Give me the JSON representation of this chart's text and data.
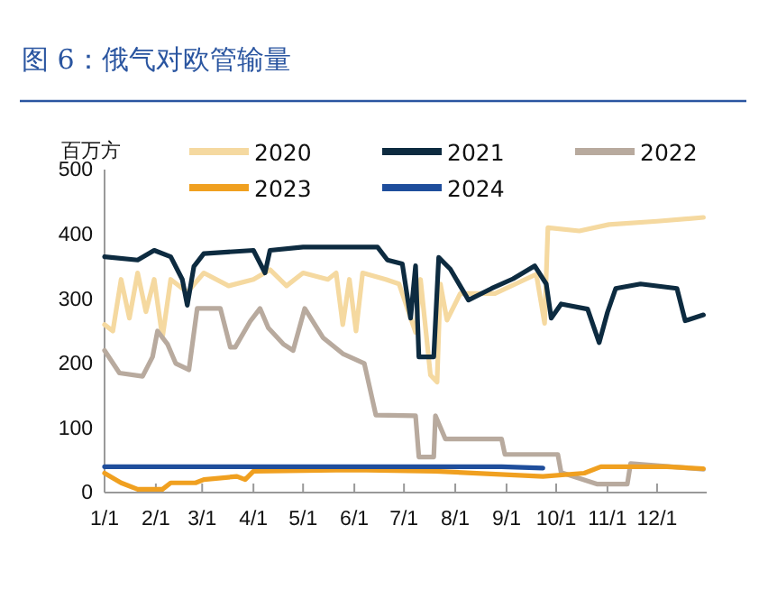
{
  "chart_data": {
    "type": "line",
    "title": "图 6：俄气对欧管输量",
    "ylabel": "百万方",
    "xlim": [
      "--01-01",
      "--12-31"
    ],
    "ylim": [
      0,
      500
    ],
    "yticks": [
      0,
      100,
      200,
      300,
      400,
      500
    ],
    "xticks": [
      {
        "value": "--01-01",
        "label": "1/1"
      },
      {
        "value": "--02-01",
        "label": "2/1"
      },
      {
        "value": "--03-01",
        "label": "3/1"
      },
      {
        "value": "--04-01",
        "label": "4/1"
      },
      {
        "value": "--05-01",
        "label": "5/1"
      },
      {
        "value": "--06-01",
        "label": "6/1"
      },
      {
        "value": "--07-01",
        "label": "7/1"
      },
      {
        "value": "--08-01",
        "label": "8/1"
      },
      {
        "value": "--09-01",
        "label": "9/1"
      },
      {
        "value": "--10-01",
        "label": "10/1"
      },
      {
        "value": "--11-01",
        "label": "11/1"
      },
      {
        "value": "--12-01",
        "label": "12/1"
      }
    ],
    "legend": "top",
    "grid": false,
    "marker": "none",
    "line_style": "solid",
    "series": [
      {
        "name": "2020",
        "color": "#f5d9a0",
        "x": [
          "--01-01",
          "--01-06",
          "--01-11",
          "--01-16",
          "--01-21",
          "--01-26",
          "--01-31",
          "--02-05",
          "--02-10",
          "--02-20",
          "--03-02",
          "--03-17",
          "--04-01",
          "--04-11",
          "--04-21",
          "--05-01",
          "--05-16",
          "--05-21",
          "--05-25",
          "--05-29",
          "--06-02",
          "--06-06",
          "--06-20",
          "--06-28",
          "--07-08",
          "--07-11",
          "--07-17",
          "--07-21",
          "--07-23",
          "--07-27",
          "--08-04",
          "--08-25",
          "--09-19",
          "--09-24",
          "--09-26",
          "--10-15",
          "--11-02",
          "--12-01",
          "--12-29"
        ],
        "values": [
          260,
          250,
          330,
          270,
          340,
          280,
          330,
          240,
          330,
          310,
          340,
          320,
          330,
          345,
          320,
          340,
          330,
          340,
          260,
          330,
          250,
          340,
          330,
          323,
          248,
          330,
          182,
          171,
          323,
          267,
          308,
          308,
          338,
          262,
          410,
          405,
          415,
          420,
          426
        ]
      },
      {
        "name": "2021",
        "color": "#0d2b40",
        "x": [
          "--01-01",
          "--01-21",
          "--01-31",
          "--02-10",
          "--02-17",
          "--02-20",
          "--02-24",
          "--03-02",
          "--04-01",
          "--04-08",
          "--04-11",
          "--05-01",
          "--06-15",
          "--06-21",
          "--06-30",
          "--07-05",
          "--07-08",
          "--07-10",
          "--07-19",
          "--07-22",
          "--07-29",
          "--08-09",
          "--08-23",
          "--09-05",
          "--09-18",
          "--09-25",
          "--09-28",
          "--10-04",
          "--10-20",
          "--10-27",
          "--11-01",
          "--11-06",
          "--11-21",
          "--12-13",
          "--12-18",
          "--12-29"
        ],
        "values": [
          365,
          360,
          375,
          365,
          330,
          290,
          350,
          370,
          375,
          340,
          375,
          380,
          380,
          360,
          354,
          270,
          351,
          210,
          210,
          364,
          346,
          298,
          316,
          331,
          351,
          323,
          270,
          292,
          284,
          232,
          279,
          316,
          323,
          316,
          266,
          275
        ]
      },
      {
        "name": "2022",
        "color": "#b8aa9e",
        "x": [
          "--01-01",
          "--01-10",
          "--01-24",
          "--01-30",
          "--02-02",
          "--02-08",
          "--02-13",
          "--02-21",
          "--02-26",
          "--03-12",
          "--03-18",
          "--03-21",
          "--03-30",
          "--04-05",
          "--04-10",
          "--04-19",
          "--04-25",
          "--05-02",
          "--05-13",
          "--05-25",
          "--06-07",
          "--06-14",
          "--07-08",
          "--07-10",
          "--07-19",
          "--07-20",
          "--07-26",
          "--08-29",
          "--08-31",
          "--10-02",
          "--10-04",
          "--10-26",
          "--11-13",
          "--11-15",
          "--12-29"
        ],
        "values": [
          220,
          185,
          180,
          210,
          250,
          230,
          200,
          190,
          285,
          285,
          225,
          225,
          265,
          285,
          255,
          230,
          220,
          285,
          240,
          215,
          200,
          120,
          119,
          55,
          55,
          119,
          83,
          83,
          59,
          59,
          31,
          13,
          13,
          45,
          36
        ]
      },
      {
        "name": "2023",
        "color": "#f0a020",
        "x": [
          "--01-01",
          "--01-11",
          "--01-21",
          "--02-05",
          "--02-10",
          "--02-25",
          "--03-02",
          "--03-22",
          "--03-27",
          "--04-01",
          "--05-31",
          "--07-20",
          "--09-23",
          "--10-18",
          "--10-28",
          "--12-07",
          "--12-29"
        ],
        "values": [
          30,
          15,
          5,
          5,
          15,
          15,
          20,
          25,
          20,
          33,
          35,
          33,
          25,
          30,
          40,
          40,
          37
        ]
      },
      {
        "name": "2024",
        "color": "#1f4e9c",
        "x": [
          "--01-01",
          "--03-02",
          "--05-01",
          "--06-30",
          "--08-29",
          "--09-23"
        ],
        "values": [
          40,
          40,
          40,
          40,
          40,
          38
        ]
      }
    ]
  }
}
